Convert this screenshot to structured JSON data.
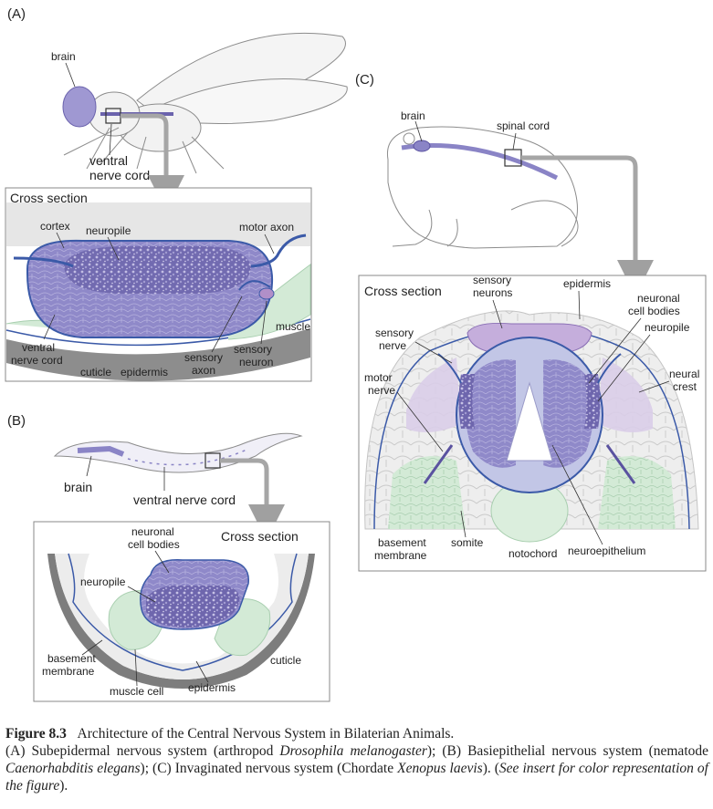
{
  "panel_a": {
    "letter": "(A)",
    "brain": "brain",
    "vnc_line1": "ventral",
    "vnc_line2": "nerve cord",
    "cross_section": "Cross section",
    "cortex": "cortex",
    "neuropile": "neuropile",
    "motor_axon": "motor axon",
    "muscle": "muscle",
    "ventral_nerve_cord_1": "ventral",
    "ventral_nerve_cord_2": "nerve cord",
    "cuticle": "cuticle",
    "epidermis": "epidermis",
    "sensory_axon_1": "sensory",
    "sensory_axon_2": "axon",
    "sensory_neuron_1": "sensory",
    "sensory_neuron_2": "neuron"
  },
  "panel_b": {
    "letter": "(B)",
    "brain": "brain",
    "vnc": "ventral nerve cord",
    "cross_section": "Cross section",
    "neuronal_1": "neuronal",
    "neuronal_2": "cell bodies",
    "neuropile": "neuropile",
    "basement_1": "basement",
    "basement_2": "membrane",
    "muscle_cell": "muscle cell",
    "epidermis": "epidermis",
    "cuticle": "cuticle"
  },
  "panel_c": {
    "letter": "(C)",
    "brain": "brain",
    "spinal_cord": "spinal cord",
    "cross_section": "Cross section",
    "sensory_neurons_1": "sensory",
    "sensory_neurons_2": "neurons",
    "epidermis": "epidermis",
    "neuronal_1": "neuronal",
    "neuronal_2": "cell bodies",
    "sensory_nerve_1": "sensory",
    "sensory_nerve_2": "nerve",
    "neuropile": "neuropile",
    "neural_crest_1": "neural",
    "neural_crest_2": "crest",
    "motor_nerve_1": "motor",
    "motor_nerve_2": "nerve",
    "basement_1": "basement",
    "basement_2": "membrane",
    "somite": "somite",
    "notochord": "notochord",
    "neuroepithelium": "neuroepithelium"
  },
  "caption": {
    "figure_number": "Figure 8.3",
    "title": "Architecture of the Central Nervous System in Bilaterian Animals.",
    "a_prefix": "(A) Subepidermal nervous system (arthropod ",
    "a_species": "Drosophila melanogaster",
    "a_suffix": "); ",
    "b_prefix": "(B) Basiepithelial nervous system (nematode ",
    "b_species": "Caenorhabditis elegans",
    "b_suffix": "); ",
    "c_prefix": "(C) Invaginated nervous system (Chordate ",
    "c_species": "Xenopus laevis",
    "c_suffix": "). (",
    "see_insert": "See insert for color representation of the figure",
    "end": ")."
  },
  "colors": {
    "neuron_purple": "#8a84c6",
    "neuron_dark": "#5a52a0",
    "light_purple": "#c9b8dd",
    "muscle_green": "#cfe6d2",
    "outline_blue": "#3b5aa8",
    "box_gray": "#888888",
    "arrow_gray": "#a6a6a6"
  }
}
